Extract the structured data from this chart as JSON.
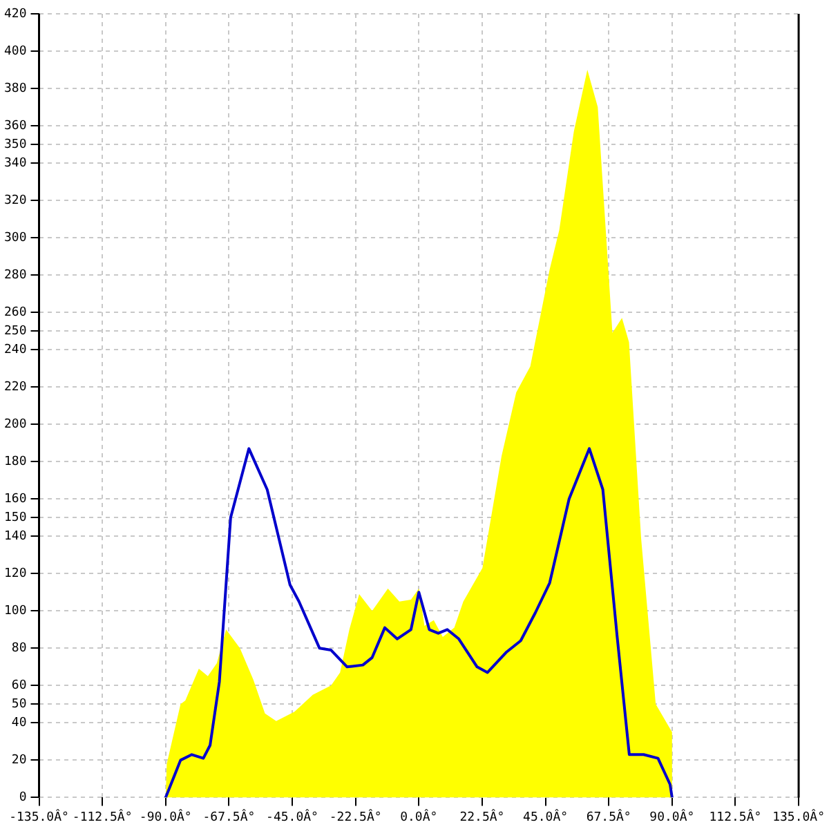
{
  "chart_data": {
    "type": "area",
    "xlim": [
      -135,
      135
    ],
    "ylim": [
      0,
      420
    ],
    "xticks": [
      {
        "value": -135,
        "label": "-135.0Â°"
      },
      {
        "value": -112.5,
        "label": "-112.5Â°"
      },
      {
        "value": -90,
        "label": "-90.0Â°"
      },
      {
        "value": -67.5,
        "label": "-67.5Â°"
      },
      {
        "value": -45,
        "label": "-45.0Â°"
      },
      {
        "value": -22.5,
        "label": "-22.5Â°"
      },
      {
        "value": 0,
        "label": "0.0Â°"
      },
      {
        "value": 22.5,
        "label": "22.5Â°"
      },
      {
        "value": 45,
        "label": "45.0Â°"
      },
      {
        "value": 67.5,
        "label": "67.5Â°"
      },
      {
        "value": 90,
        "label": "90.0Â°"
      },
      {
        "value": 112.5,
        "label": "112.5Â°"
      },
      {
        "value": 135,
        "label": "135.0Â°"
      }
    ],
    "yticks": [
      0,
      20,
      40,
      50,
      60,
      80,
      100,
      120,
      140,
      150,
      160,
      180,
      200,
      220,
      240,
      250,
      260,
      280,
      300,
      320,
      340,
      350,
      360,
      380,
      400,
      420
    ],
    "grid": true,
    "legend": false,
    "marker": "none",
    "line_style": "solid",
    "series": [
      {
        "type": "area",
        "color": "#ffff00",
        "x": [
          -135,
          -90,
          -89.6,
          -84.7,
          -83,
          -78.2,
          -75,
          -71.8,
          -68.5,
          -63.6,
          -58.8,
          -54.7,
          -50.7,
          -44.2,
          -37.7,
          -31.2,
          -28,
          -24.7,
          -21.2,
          -16.6,
          -11,
          -6.9,
          -2.8,
          0,
          2,
          5.3,
          8.5,
          12.6,
          15.8,
          22.6,
          29.4,
          34.6,
          39.6,
          46.5,
          49.9,
          55.1,
          59.9,
          63.6,
          68.8,
          72.2,
          74.7,
          79,
          84.2,
          90,
          90,
          135
        ],
        "values": [
          0,
          0,
          18,
          50,
          52,
          69,
          65,
          72,
          90,
          80,
          63,
          45,
          41,
          46,
          55,
          60,
          67,
          90,
          109,
          100,
          112,
          105,
          106,
          112,
          92,
          95,
          86,
          91,
          105,
          123,
          183,
          217,
          231,
          283,
          304,
          357,
          390,
          370,
          249,
          257,
          244,
          139,
          50,
          35,
          0,
          0
        ]
      },
      {
        "type": "line",
        "color": "#0000cc",
        "x": [
          -90,
          -84.7,
          -80.7,
          -76.6,
          -74.2,
          -70.9,
          -66.9,
          -60.4,
          -53.9,
          -45.8,
          -42.6,
          -35.3,
          -31.2,
          -25.5,
          -19.9,
          -16.6,
          -12.1,
          -7.7,
          -2.8,
          0,
          3.7,
          6.9,
          10.1,
          14.2,
          20.7,
          24.4,
          31.2,
          36.2,
          41.4,
          46.5,
          53.4,
          60.6,
          65.4,
          70.5,
          74.8,
          79.9,
          85,
          89.3,
          90
        ],
        "values": [
          0,
          20,
          23,
          21,
          28,
          62,
          150,
          187,
          165,
          114,
          105,
          80,
          79,
          70,
          71,
          75,
          91,
          85,
          90,
          110,
          90,
          88,
          90,
          85,
          70,
          67,
          78,
          84,
          99,
          115,
          160,
          187,
          165,
          86,
          23,
          23,
          21,
          7,
          0
        ]
      }
    ]
  }
}
